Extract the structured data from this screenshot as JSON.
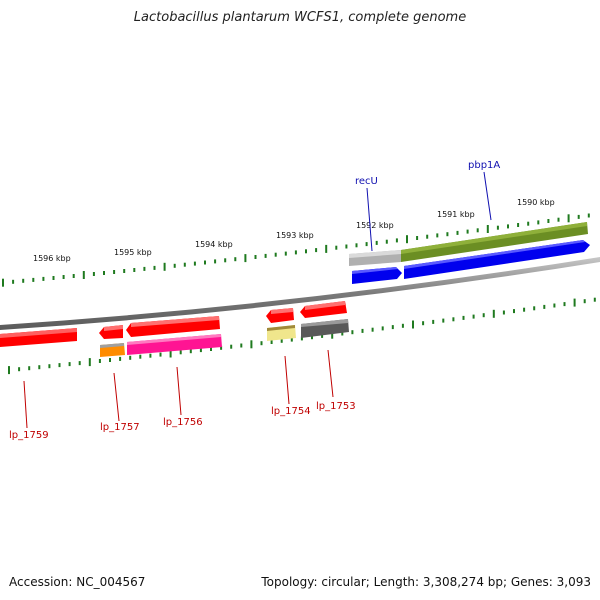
{
  "title": "Lactobacillus plantarum WCFS1, complete genome",
  "footer": {
    "accession": "Accession: NC_004567",
    "summary": "Topology: circular; Length: 3,308,274 bp; Genes: 3,093"
  },
  "colors": {
    "backbone": "#808080",
    "tick": "#1f7a1f",
    "forward_label": "#1010b0",
    "reverse_label": "#c00000"
  },
  "ticks": [
    "1596 kbp",
    "1595 kbp",
    "1594 kbp",
    "1593 kbp",
    "1592 kbp",
    "1591 kbp",
    "1590 kbp"
  ],
  "labels": {
    "recU": "recU",
    "pbp1A": "pbp1A",
    "lp_1759": "lp_1759",
    "lp_1757": "lp_1757",
    "lp_1756": "lp_1756",
    "lp_1754": "lp_1754",
    "lp_1753": "lp_1753"
  }
}
